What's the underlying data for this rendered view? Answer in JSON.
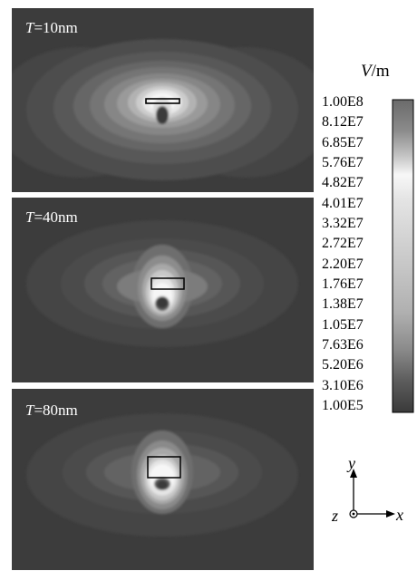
{
  "panels": [
    {
      "label_var": "T",
      "label_val": "=10nm"
    },
    {
      "label_var": "T",
      "label_val": "=40nm"
    },
    {
      "label_var": "T",
      "label_val": "=80nm"
    }
  ],
  "colorbar": {
    "unit_var": "V",
    "unit_rest": "/m",
    "ticks": [
      "1.00E8",
      "8.12E7",
      "6.85E7",
      "5.76E7",
      "4.82E7",
      "4.01E7",
      "3.32E7",
      "2.72E7",
      "2.20E7",
      "1.76E7",
      "1.38E7",
      "1.05E7",
      "7.63E6",
      "5.20E6",
      "3.10E6",
      "1.00E5"
    ]
  },
  "axes": {
    "x": "x",
    "y": "y",
    "z": "z"
  }
}
